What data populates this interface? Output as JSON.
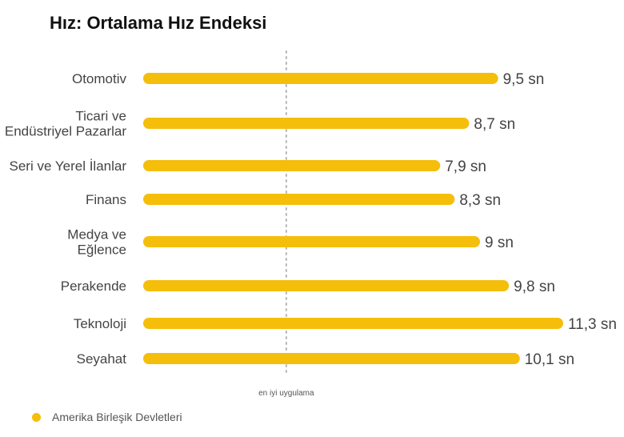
{
  "chart_data": {
    "type": "bar",
    "orientation": "horizontal",
    "title": "Hız: Ortalama Hız Endeksi",
    "categories": [
      "Otomotiv",
      "Ticari ve\nEndüstriyel Pazarlar",
      "Seri ve Yerel İlanlar",
      "Finans",
      "Medya ve\nEğlence",
      "Perakende",
      "Teknoloji",
      "Seyahat"
    ],
    "series": [
      {
        "name": "Amerika Birleşik Devletleri",
        "values": [
          9.5,
          8.7,
          7.9,
          8.3,
          9,
          9.8,
          11.3,
          10.1
        ],
        "labels": [
          "9,5 sn",
          "8,7 sn",
          "7,9 sn",
          "8,3 sn",
          "9 sn",
          "9,8 sn",
          "11,3 sn",
          "10,1 sn"
        ],
        "color": "#F5BE0B"
      }
    ],
    "reference_line": {
      "label": "en iyi uygulama",
      "value": 3.8
    },
    "xlim": [
      0,
      11.3
    ],
    "grid": false,
    "legend_position": "bottom-left"
  }
}
